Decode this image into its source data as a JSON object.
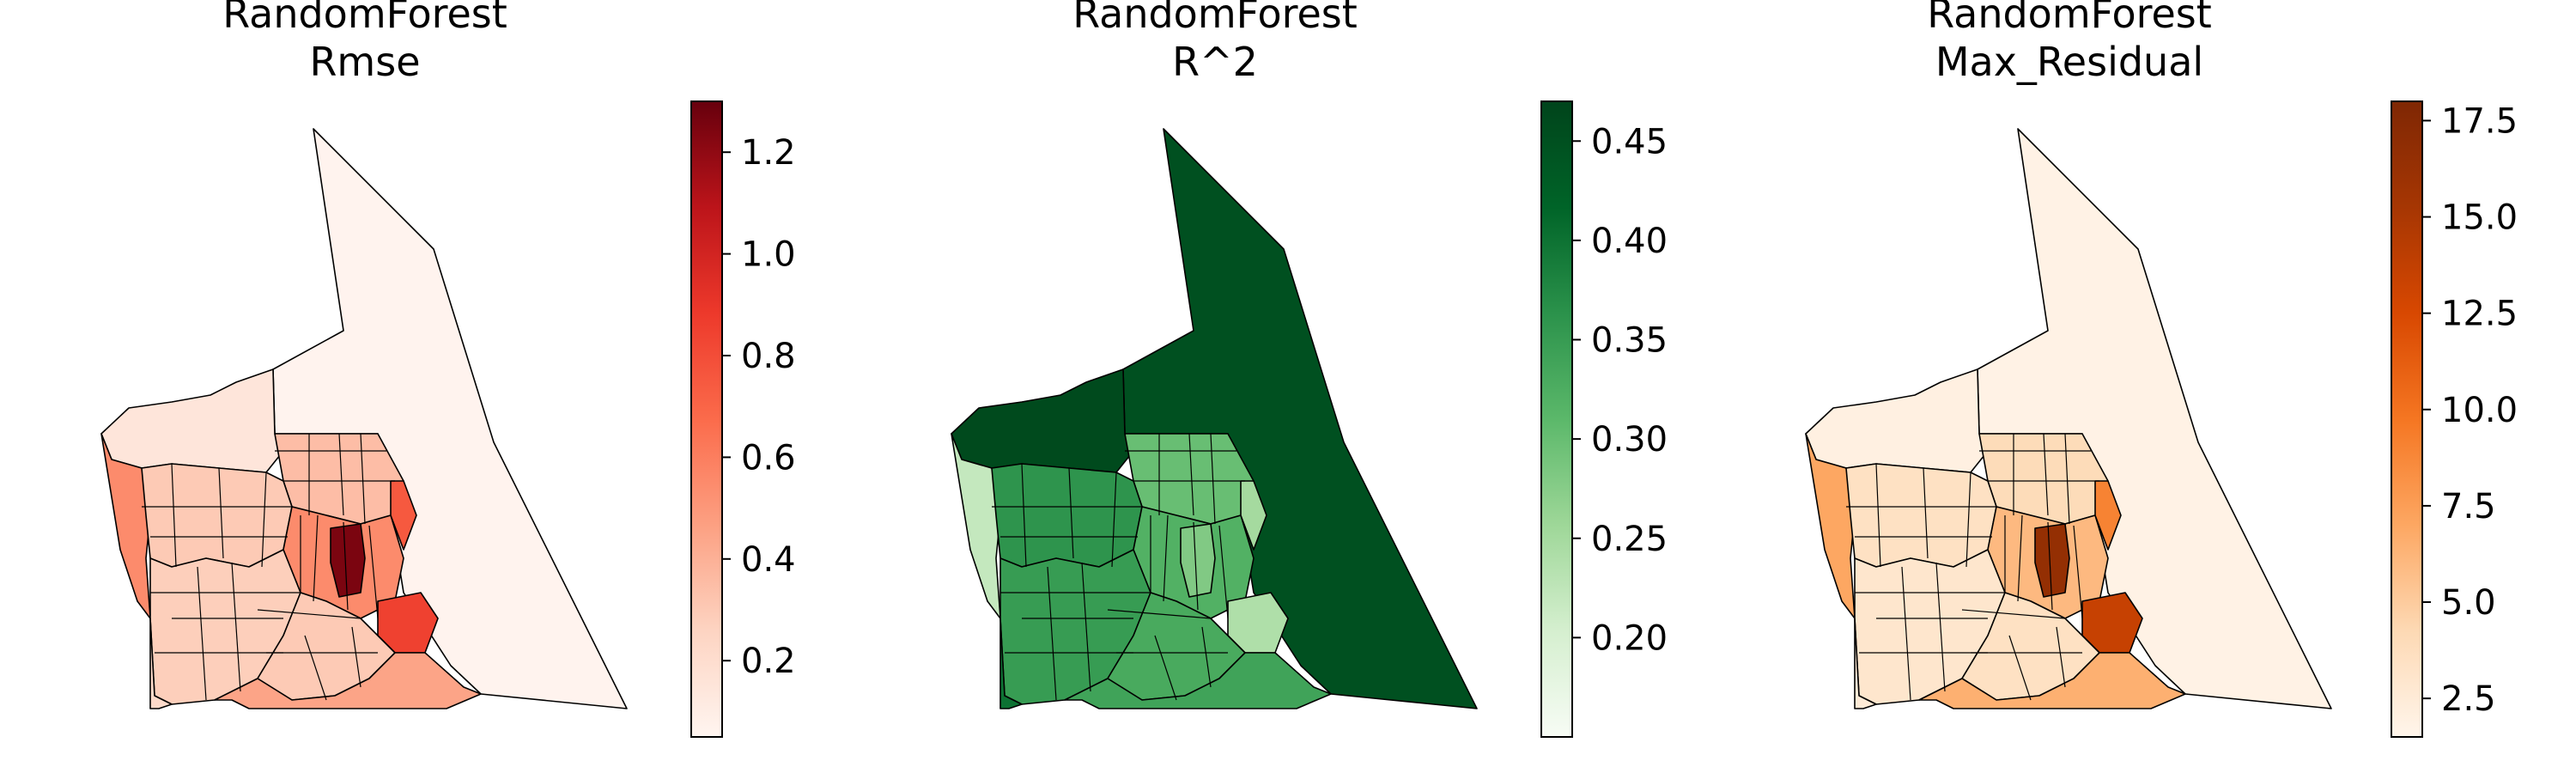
{
  "chart_data": [
    {
      "type": "choropleth",
      "title": "RandomForest",
      "subtitle": "Rmse",
      "colormap": "Reds",
      "colorbar": {
        "range": [
          0.05,
          1.3
        ],
        "ticks": [
          0.2,
          0.4,
          0.6,
          0.8,
          1.0,
          1.2
        ],
        "tick_labels": [
          "0.2",
          "0.4",
          "0.6",
          "0.8",
          "1.0",
          "1.2"
        ],
        "colors": [
          "#fff5f0",
          "#fdd4c2",
          "#fca082",
          "#fb6b4b",
          "#ed392b",
          "#bc141a",
          "#67000d"
        ]
      },
      "regions": {
        "north": 0.06,
        "northwest": 0.15,
        "west_coast": 0.55,
        "upper_center": 0.35,
        "center_west": 0.3,
        "center_core": 0.55,
        "hotspot": 1.25,
        "east": 0.75,
        "southeast_spot": 0.85,
        "south": 0.28,
        "southeast": 0.3,
        "southwest": 0.22,
        "south_strip": 0.45
      }
    },
    {
      "type": "choropleth",
      "title": "RandomForest",
      "subtitle": "R^2",
      "colormap": "Greens",
      "colorbar": {
        "range": [
          0.15,
          0.47
        ],
        "ticks": [
          0.2,
          0.25,
          0.3,
          0.35,
          0.4,
          0.45
        ],
        "tick_labels": [
          "0.20",
          "0.25",
          "0.30",
          "0.35",
          "0.40",
          "0.45"
        ],
        "colors": [
          "#f7fcf5",
          "#d5efcf",
          "#9ed798",
          "#5bb86a",
          "#2b924b",
          "#006428",
          "#00441b"
        ]
      },
      "regions": {
        "north": 0.45,
        "northwest": 0.46,
        "west_coast": 0.22,
        "upper_center": 0.3,
        "center_west": 0.36,
        "center_core": 0.32,
        "hotspot": 0.28,
        "east": 0.25,
        "southeast_spot": 0.24,
        "south": 0.35,
        "southeast": 0.33,
        "southwest": 0.4,
        "south_strip": 0.34
      }
    },
    {
      "type": "choropleth",
      "title": "RandomForest",
      "subtitle": "Max_Residual",
      "colormap": "Oranges",
      "colorbar": {
        "range": [
          1.5,
          18.0
        ],
        "ticks": [
          2.5,
          5.0,
          7.5,
          10.0,
          12.5,
          15.0,
          17.5
        ],
        "tick_labels": [
          "2.5",
          "5.0",
          "7.5",
          "10.0",
          "12.5",
          "15.0",
          "17.5"
        ],
        "colors": [
          "#fff5eb",
          "#fdd9b4",
          "#fda762",
          "#f57622",
          "#d84801",
          "#a63603",
          "#7f2704"
        ]
      },
      "regions": {
        "north": 1.8,
        "northwest": 2.0,
        "west_coast": 7.0,
        "upper_center": 4.0,
        "center_west": 3.5,
        "center_core": 6.0,
        "hotspot": 16.5,
        "east": 9.0,
        "southeast_spot": 13.5,
        "south": 3.0,
        "southeast": 3.5,
        "southwest": 2.5,
        "south_strip": 6.5
      }
    }
  ]
}
